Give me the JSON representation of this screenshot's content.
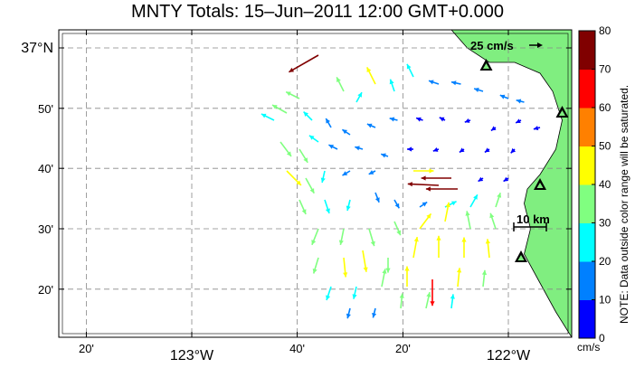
{
  "title": "MNTY Totals: 15–Jun–2011 12:00 GMT+0.000",
  "axes": {
    "x_ticks": [
      {
        "label": "20'",
        "lon": -123.333
      },
      {
        "label": "123°W",
        "lon": -123.0
      },
      {
        "label": "40'",
        "lon": -122.667
      },
      {
        "label": "20'",
        "lon": -122.333
      },
      {
        "label": "122°W",
        "lon": -122.0
      }
    ],
    "y_ticks": [
      {
        "label": "37°N",
        "lat": 37.0
      },
      {
        "label": "50'",
        "lat": 36.833
      },
      {
        "label": "40'",
        "lat": 36.667
      },
      {
        "label": "30'",
        "lat": 36.5
      },
      {
        "label": "20'",
        "lat": 36.333
      }
    ],
    "lon_range": [
      -123.42,
      -121.8
    ],
    "lat_range": [
      36.2,
      37.05
    ],
    "grid": true
  },
  "scale": {
    "velocity_label": "25 cm/s",
    "distance_label": "10 km"
  },
  "colorbar": {
    "note": "NOTE: Data outside color range will be saturated.",
    "unit": "cm/s",
    "ticks": [
      "0",
      "10",
      "20",
      "30",
      "40",
      "50",
      "60",
      "70",
      "80"
    ],
    "colors": [
      "#0000ff",
      "#0080ff",
      "#00ffff",
      "#80ff80",
      "#ffff00",
      "#ff8000",
      "#ff0000",
      "#800000"
    ]
  },
  "land_color": "#80ee80",
  "sites": [
    {
      "name": "site-1",
      "lon": -122.07,
      "lat": 36.95
    },
    {
      "name": "site-2",
      "lon": -121.83,
      "lat": 36.82
    },
    {
      "name": "site-3",
      "lon": -121.9,
      "lat": 36.62
    },
    {
      "name": "site-4",
      "lon": -121.96,
      "lat": 36.42
    }
  ],
  "coastline": [
    [
      -122.18,
      37.05
    ],
    [
      -122.13,
      37.0
    ],
    [
      -122.06,
      36.96
    ],
    [
      -121.98,
      36.96
    ],
    [
      -121.9,
      36.93
    ],
    [
      -121.86,
      36.88
    ],
    [
      -121.83,
      36.8
    ],
    [
      -121.85,
      36.72
    ],
    [
      -121.9,
      36.65
    ],
    [
      -121.94,
      36.61
    ],
    [
      -121.95,
      36.57
    ],
    [
      -121.93,
      36.5
    ],
    [
      -121.95,
      36.43
    ],
    [
      -121.9,
      36.35
    ],
    [
      -121.85,
      36.27
    ],
    [
      -121.8,
      36.2
    ]
  ],
  "vectors": [
    {
      "lon": -122.6,
      "lat": 36.98,
      "u": -14,
      "v": -8,
      "speed": 80
    },
    {
      "lon": -122.42,
      "lat": 36.9,
      "u": -4,
      "v": 8,
      "speed": 40
    },
    {
      "lon": -122.52,
      "lat": 36.88,
      "u": -6,
      "v": 12,
      "speed": 32
    },
    {
      "lon": -122.48,
      "lat": 36.85,
      "u": 5,
      "v": 9,
      "speed": 20
    },
    {
      "lon": -122.36,
      "lat": 36.88,
      "u": -3,
      "v": 9,
      "speed": 24
    },
    {
      "lon": -122.3,
      "lat": 36.92,
      "u": -5,
      "v": 10,
      "speed": 28
    },
    {
      "lon": -122.22,
      "lat": 36.9,
      "u": -9,
      "v": 3,
      "speed": 18
    },
    {
      "lon": -122.15,
      "lat": 36.9,
      "u": -9,
      "v": 2,
      "speed": 16
    },
    {
      "lon": -122.08,
      "lat": 36.88,
      "u": -10,
      "v": 3,
      "speed": 15
    },
    {
      "lon": -122.0,
      "lat": 36.86,
      "u": -10,
      "v": 4,
      "speed": 14
    },
    {
      "lon": -121.95,
      "lat": 36.85,
      "u": -8,
      "v": 2,
      "speed": 12
    },
    {
      "lon": -122.66,
      "lat": 36.86,
      "u": -8,
      "v": 4,
      "speed": 30
    },
    {
      "lon": -122.7,
      "lat": 36.82,
      "u": -9,
      "v": 5,
      "speed": 34
    },
    {
      "lon": -122.74,
      "lat": 36.8,
      "u": -8,
      "v": 4,
      "speed": 28
    },
    {
      "lon": -122.62,
      "lat": 36.8,
      "u": -6,
      "v": 6,
      "speed": 22
    },
    {
      "lon": -122.56,
      "lat": 36.78,
      "u": -4,
      "v": 7,
      "speed": 18
    },
    {
      "lon": -122.5,
      "lat": 36.76,
      "u": -6,
      "v": 4,
      "speed": 15
    },
    {
      "lon": -122.42,
      "lat": 36.78,
      "u": -7,
      "v": 3,
      "speed": 14
    },
    {
      "lon": -122.35,
      "lat": 36.8,
      "u": -8,
      "v": 2,
      "speed": 12
    },
    {
      "lon": -122.27,
      "lat": 36.8,
      "u": -6,
      "v": 2,
      "speed": 9
    },
    {
      "lon": -122.2,
      "lat": 36.8,
      "u": -4,
      "v": 2,
      "speed": 7
    },
    {
      "lon": -122.12,
      "lat": 36.8,
      "u": -3,
      "v": -1,
      "speed": 6
    },
    {
      "lon": -122.04,
      "lat": 36.78,
      "u": -3,
      "v": -2,
      "speed": 5
    },
    {
      "lon": -121.96,
      "lat": 36.8,
      "u": -4,
      "v": -2,
      "speed": 6
    },
    {
      "lon": -121.9,
      "lat": 36.78,
      "u": -4,
      "v": -1,
      "speed": 8
    },
    {
      "lon": -122.72,
      "lat": 36.74,
      "u": 6,
      "v": -8,
      "speed": 38
    },
    {
      "lon": -122.66,
      "lat": 36.72,
      "u": 5,
      "v": -8,
      "speed": 32
    },
    {
      "lon": -122.6,
      "lat": 36.74,
      "u": -7,
      "v": 5,
      "speed": 20
    },
    {
      "lon": -122.54,
      "lat": 36.72,
      "u": -8,
      "v": 4,
      "speed": 16
    },
    {
      "lon": -122.46,
      "lat": 36.72,
      "u": -7,
      "v": 2,
      "speed": 12
    },
    {
      "lon": -122.38,
      "lat": 36.7,
      "u": -6,
      "v": 2,
      "speed": 10
    },
    {
      "lon": -122.3,
      "lat": 36.72,
      "u": -4,
      "v": 0,
      "speed": 7
    },
    {
      "lon": -122.22,
      "lat": 36.72,
      "u": -3,
      "v": -1,
      "speed": 6
    },
    {
      "lon": -122.14,
      "lat": 36.72,
      "u": -3,
      "v": -2,
      "speed": 5
    },
    {
      "lon": -122.06,
      "lat": 36.72,
      "u": -3,
      "v": -2,
      "speed": 5
    },
    {
      "lon": -121.98,
      "lat": 36.72,
      "u": -2,
      "v": -2,
      "speed": 5
    },
    {
      "lon": -122.7,
      "lat": 36.66,
      "u": 8,
      "v": -8,
      "speed": 44
    },
    {
      "lon": -122.64,
      "lat": 36.64,
      "u": 5,
      "v": -9,
      "speed": 36
    },
    {
      "lon": -122.58,
      "lat": 36.66,
      "u": -2,
      "v": -9,
      "speed": 22
    },
    {
      "lon": -122.5,
      "lat": 36.66,
      "u": -5,
      "v": -3,
      "speed": 14
    },
    {
      "lon": -122.42,
      "lat": 36.66,
      "u": -4,
      "v": -2,
      "speed": 10
    },
    {
      "lon": -122.3,
      "lat": 36.66,
      "u": 9,
      "v": 0,
      "speed": 44
    },
    {
      "lon": -122.18,
      "lat": 36.64,
      "u": -20,
      "v": 0,
      "speed": 70
    },
    {
      "lon": -122.22,
      "lat": 36.62,
      "u": -22,
      "v": 1,
      "speed": 72
    },
    {
      "lon": -122.16,
      "lat": 36.61,
      "u": -24,
      "v": 0,
      "speed": 74
    },
    {
      "lon": -122.08,
      "lat": 36.64,
      "u": -3,
      "v": -2,
      "speed": 6
    },
    {
      "lon": -122.0,
      "lat": 36.64,
      "u": -3,
      "v": -2,
      "speed": 6
    },
    {
      "lon": -122.66,
      "lat": 36.58,
      "u": 4,
      "v": -9,
      "speed": 32
    },
    {
      "lon": -122.58,
      "lat": 36.58,
      "u": 3,
      "v": -9,
      "speed": 28
    },
    {
      "lon": -122.5,
      "lat": 36.58,
      "u": -2,
      "v": -8,
      "speed": 20
    },
    {
      "lon": -122.42,
      "lat": 36.6,
      "u": 3,
      "v": -8,
      "speed": 18
    },
    {
      "lon": -122.36,
      "lat": 36.58,
      "u": 4,
      "v": -7,
      "speed": 16
    },
    {
      "lon": -122.28,
      "lat": 36.56,
      "u": 6,
      "v": 4,
      "speed": 14
    },
    {
      "lon": -122.2,
      "lat": 36.56,
      "u": 8,
      "v": 4,
      "speed": 24
    },
    {
      "lon": -122.12,
      "lat": 36.56,
      "u": 4,
      "v": 7,
      "speed": 28
    },
    {
      "lon": -122.04,
      "lat": 36.56,
      "u": 3,
      "v": 9,
      "speed": 30
    },
    {
      "lon": -122.6,
      "lat": 36.5,
      "u": -4,
      "v": -10,
      "speed": 36
    },
    {
      "lon": -122.52,
      "lat": 36.5,
      "u": -2,
      "v": -10,
      "speed": 34
    },
    {
      "lon": -122.44,
      "lat": 36.5,
      "u": 3,
      "v": -10,
      "speed": 38
    },
    {
      "lon": -122.36,
      "lat": 36.52,
      "u": 4,
      "v": -9,
      "speed": 30
    },
    {
      "lon": -122.28,
      "lat": 36.5,
      "u": 6,
      "v": 8,
      "speed": 40
    },
    {
      "lon": -122.2,
      "lat": 36.52,
      "u": 2,
      "v": 10,
      "speed": 42
    },
    {
      "lon": -122.12,
      "lat": 36.5,
      "u": -2,
      "v": 10,
      "speed": 38
    },
    {
      "lon": -122.04,
      "lat": 36.5,
      "u": -3,
      "v": 9,
      "speed": 34
    },
    {
      "lon": -122.6,
      "lat": 36.42,
      "u": -3,
      "v": -10,
      "speed": 34
    },
    {
      "lon": -122.52,
      "lat": 36.42,
      "u": 1,
      "v": -10,
      "speed": 42
    },
    {
      "lon": -122.46,
      "lat": 36.44,
      "u": 2,
      "v": -12,
      "speed": 48
    },
    {
      "lon": -122.38,
      "lat": 36.42,
      "u": 0,
      "v": -10,
      "speed": 30
    },
    {
      "lon": -122.3,
      "lat": 36.42,
      "u": 2,
      "v": 11,
      "speed": 46
    },
    {
      "lon": -122.22,
      "lat": 36.42,
      "u": 0,
      "v": 12,
      "speed": 48
    },
    {
      "lon": -122.14,
      "lat": 36.42,
      "u": 0,
      "v": 11,
      "speed": 44
    },
    {
      "lon": -122.06,
      "lat": 36.42,
      "u": -1,
      "v": 10,
      "speed": 40
    },
    {
      "lon": -122.56,
      "lat": 36.34,
      "u": -3,
      "v": -9,
      "speed": 28
    },
    {
      "lon": -122.48,
      "lat": 36.34,
      "u": -2,
      "v": -9,
      "speed": 24
    },
    {
      "lon": -122.4,
      "lat": 36.34,
      "u": 2,
      "v": 10,
      "speed": 38
    },
    {
      "lon": -122.32,
      "lat": 36.34,
      "u": 0,
      "v": 11,
      "speed": 44
    },
    {
      "lon": -122.24,
      "lat": 36.36,
      "u": 0,
      "v": -10,
      "speed": 60
    },
    {
      "lon": -122.16,
      "lat": 36.34,
      "u": 1,
      "v": 10,
      "speed": 40
    },
    {
      "lon": -122.08,
      "lat": 36.34,
      "u": 1,
      "v": 9,
      "speed": 34
    },
    {
      "lon": -122.5,
      "lat": 36.28,
      "u": -2,
      "v": -8,
      "speed": 18
    },
    {
      "lon": -122.42,
      "lat": 36.28,
      "u": -2,
      "v": -8,
      "speed": 16
    },
    {
      "lon": -122.34,
      "lat": 36.28,
      "u": 1,
      "v": 9,
      "speed": 30
    },
    {
      "lon": -122.26,
      "lat": 36.28,
      "u": 2,
      "v": 9,
      "speed": 34
    },
    {
      "lon": -122.18,
      "lat": 36.28,
      "u": 1,
      "v": 8,
      "speed": 28
    }
  ]
}
